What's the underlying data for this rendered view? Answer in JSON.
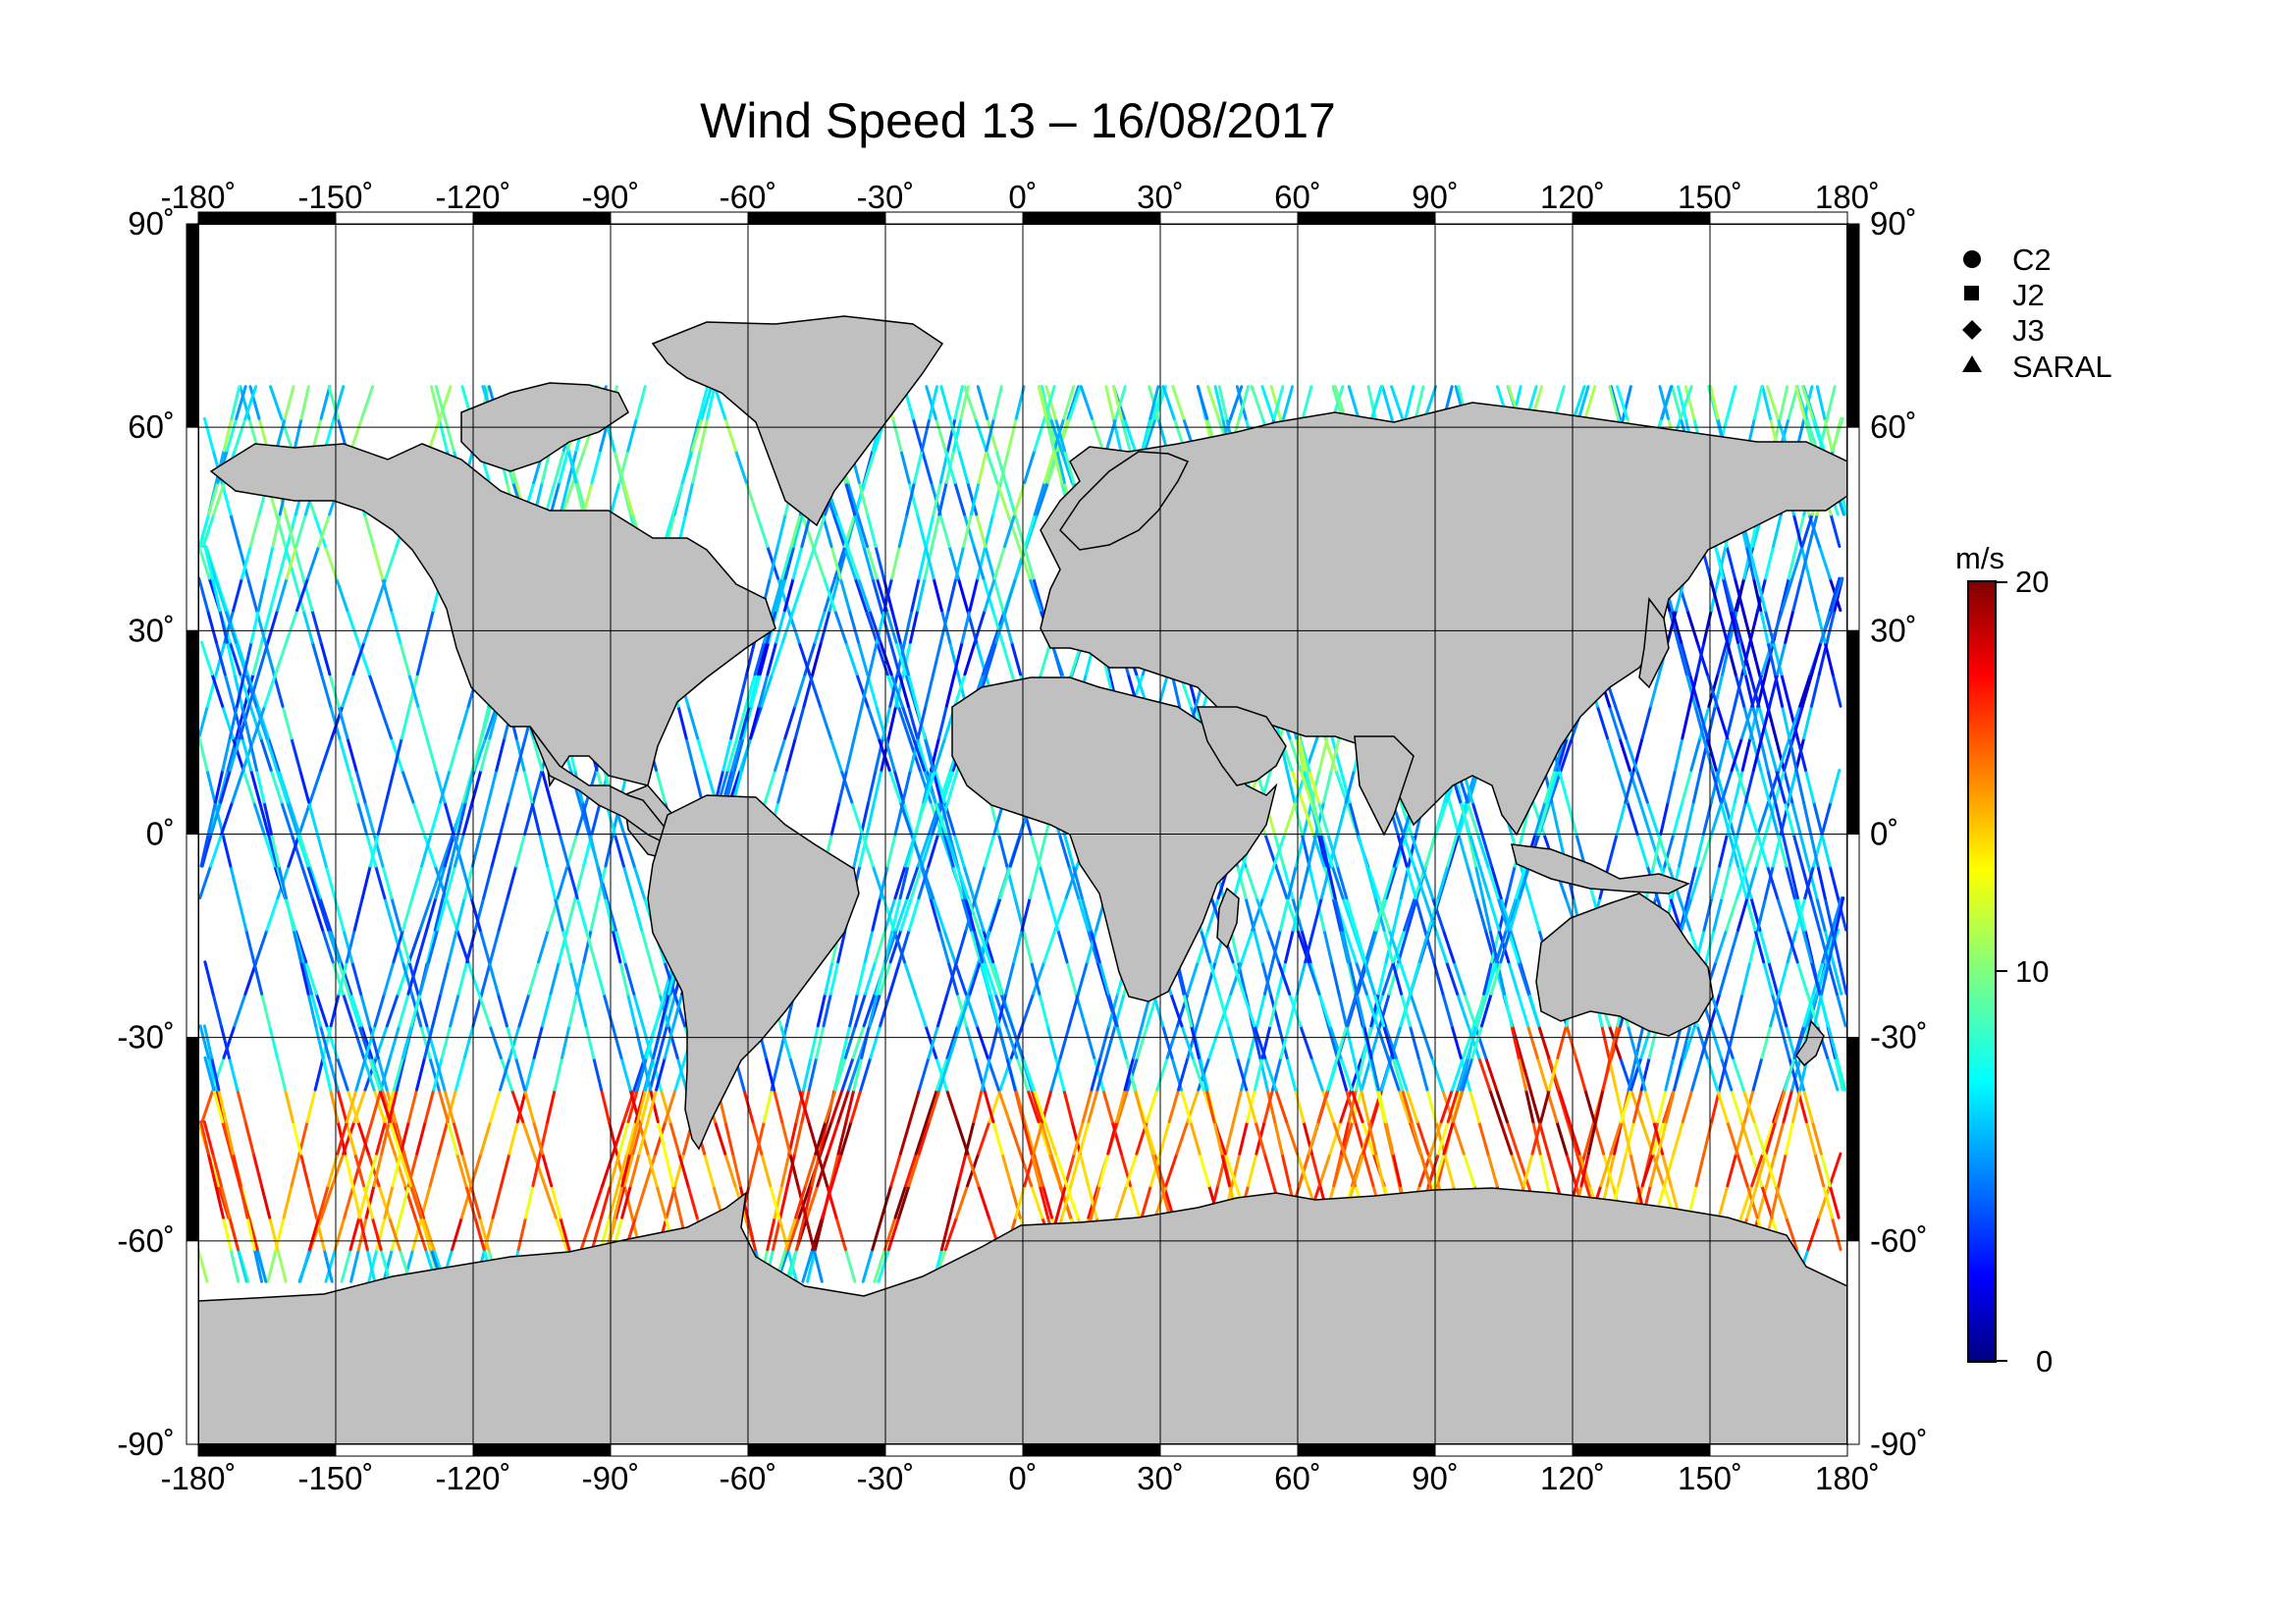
{
  "title": "Wind Speed 13 – 16/08/2017",
  "map": {
    "lon_range": [
      -180,
      180
    ],
    "lat_range": [
      -90,
      90
    ],
    "lon_ticks": [
      "-180˚",
      "-150˚",
      "-120˚",
      "-90˚",
      "-60˚",
      "-30˚",
      "0˚",
      "30˚",
      "60˚",
      "90˚",
      "120˚",
      "150˚",
      "180˚"
    ],
    "lat_ticks_left": [
      "90˚",
      "60˚",
      "30˚",
      "0˚",
      "-30˚",
      "-60˚",
      "-90˚"
    ],
    "lat_ticks_right": [
      "90˚",
      "60˚",
      "30˚",
      "0˚",
      "-30˚",
      "-60˚",
      "-90˚"
    ],
    "land_color": "#c0c0c0",
    "coast_color": "#000000",
    "grid": true
  },
  "legend": {
    "items": [
      {
        "label": "C2",
        "symbol": "circle-icon"
      },
      {
        "label": "J2",
        "symbol": "square-icon"
      },
      {
        "label": "J3",
        "symbol": "diamond-icon"
      },
      {
        "label": "SARAL",
        "symbol": "triangle-icon"
      }
    ]
  },
  "colorbar": {
    "unit": "m/s",
    "min": 0,
    "max": 20,
    "tick_labels": [
      "20",
      "10",
      "0"
    ],
    "colormap": "jet"
  },
  "chart_data": {
    "type": "scatter",
    "title": "Wind Speed 13 – 16/08/2017",
    "xlim": [
      -180,
      180
    ],
    "ylim": [
      -90,
      90
    ],
    "value_range": [
      0,
      20
    ],
    "value_unit": "m/s",
    "series": [
      {
        "name": "C2"
      },
      {
        "name": "J2"
      },
      {
        "name": "J3"
      },
      {
        "name": "SARAL"
      }
    ],
    "regions": [
      {
        "lon": [
          -180,
          -110
        ],
        "lat": [
          -20,
          60
        ],
        "typical_speed": 6
      },
      {
        "lon": [
          -180,
          180
        ],
        "lat": [
          -62,
          -38
        ],
        "typical_speed": 13
      },
      {
        "lon": [
          -50,
          -10
        ],
        "lat": [
          -60,
          -40
        ],
        "typical_speed": 16
      },
      {
        "lon": [
          100,
          130
        ],
        "lat": [
          -45,
          -30
        ],
        "typical_speed": 16
      },
      {
        "lon": [
          120,
          180
        ],
        "lat": [
          10,
          45
        ],
        "typical_speed": 4
      },
      {
        "lon": [
          -60,
          -10
        ],
        "lat": [
          10,
          60
        ],
        "typical_speed": 5
      },
      {
        "lon": [
          50,
          70
        ],
        "lat": [
          0,
          20
        ],
        "typical_speed": 9
      }
    ]
  }
}
